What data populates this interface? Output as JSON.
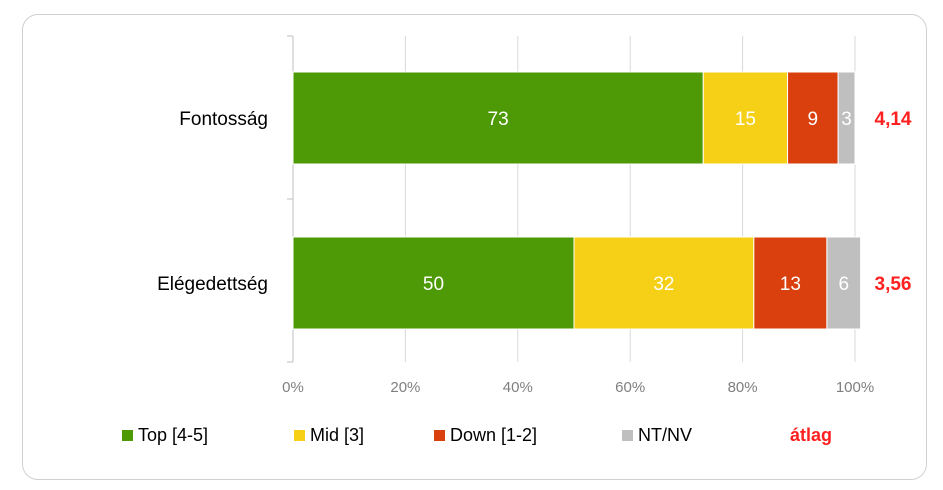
{
  "chart_data": {
    "type": "bar",
    "orientation": "horizontal",
    "stacked": true,
    "percent_stacked": true,
    "categories": [
      "Fontosság",
      "Elégedettség"
    ],
    "series": [
      {
        "name": "Top [4-5]",
        "values": [
          73,
          50
        ],
        "color": "#4e9a06"
      },
      {
        "name": "Mid [3]",
        "values": [
          15,
          32
        ],
        "color": "#f5d017"
      },
      {
        "name": "Down [1-2]",
        "values": [
          9,
          13
        ],
        "color": "#d9400e"
      },
      {
        "name": "NT/NV",
        "values": [
          3,
          6
        ],
        "color": "#bfbfbf"
      }
    ],
    "averages": {
      "name": "átlag",
      "values": [
        "4,14",
        "3,56"
      ],
      "color": "#ff2020"
    },
    "x_ticks": [
      "0%",
      "20%",
      "40%",
      "60%",
      "80%",
      "100%"
    ],
    "xlim": [
      0,
      100
    ],
    "grid": true,
    "legend_position": "bottom"
  }
}
